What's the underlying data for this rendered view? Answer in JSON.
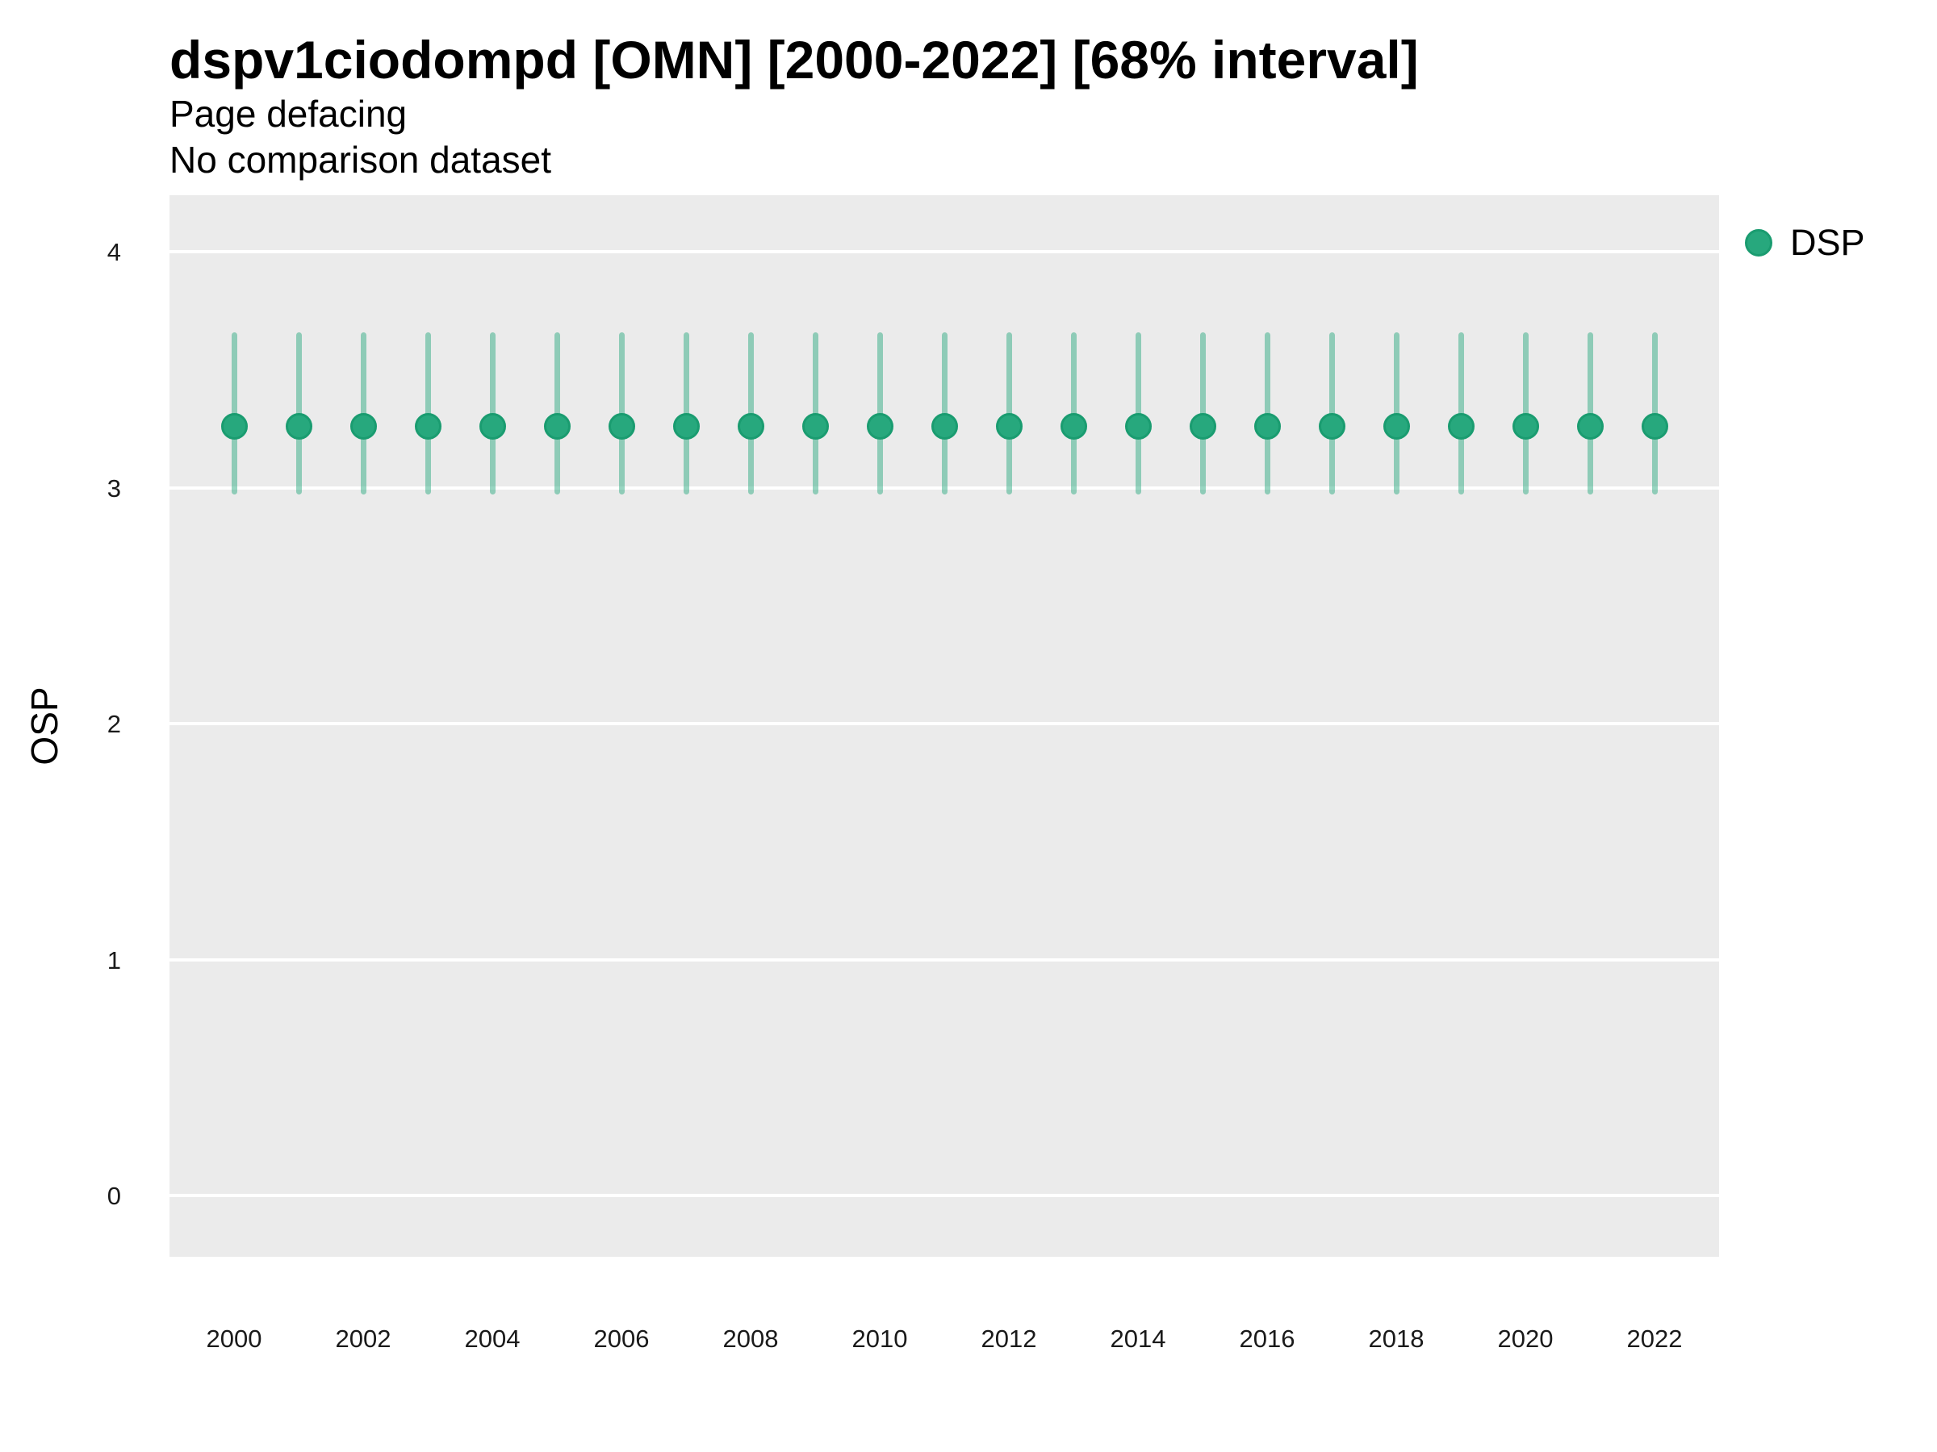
{
  "header": {
    "title": "dspv1ciodompd [OMN] [2000-2022] [68% interval]",
    "subtitle": "Page defacing",
    "note": "No comparison dataset"
  },
  "legend": {
    "items": [
      {
        "label": "DSP",
        "swatch": "circle"
      }
    ]
  },
  "axes": {
    "y": {
      "label": "OSP",
      "ticks": [
        0,
        1,
        2,
        3,
        4
      ]
    },
    "x": {
      "ticks": [
        2000,
        2002,
        2004,
        2006,
        2008,
        2010,
        2012,
        2014,
        2016,
        2018,
        2020,
        2022
      ]
    }
  },
  "colors": {
    "panel_bg": "#EBEBEB",
    "grid": "#FFFFFF",
    "point_fill": "#27A87D",
    "point_stroke": "#1A9C70",
    "interval": "rgba(39, 168, 125, 0.47)",
    "text": "#000000"
  },
  "chart_data": {
    "type": "scatter",
    "variant": "pointrange",
    "title": "dspv1ciodompd [OMN] [2000-2022] [68% interval]",
    "subtitle": "Page defacing",
    "annotation": "No comparison dataset",
    "xlabel": "",
    "ylabel": "OSP",
    "interval_level": "68%",
    "legend_position": "right-top",
    "grid": "major-y-only",
    "x": [
      2000,
      2001,
      2002,
      2003,
      2004,
      2005,
      2006,
      2007,
      2008,
      2009,
      2010,
      2011,
      2012,
      2013,
      2014,
      2015,
      2016,
      2017,
      2018,
      2019,
      2020,
      2021,
      2022
    ],
    "series": [
      {
        "name": "DSP",
        "values": [
          3.26,
          3.26,
          3.26,
          3.26,
          3.26,
          3.26,
          3.26,
          3.26,
          3.26,
          3.26,
          3.26,
          3.26,
          3.26,
          3.26,
          3.26,
          3.26,
          3.26,
          3.26,
          3.26,
          3.26,
          3.26,
          3.26,
          3.26
        ],
        "lower": [
          2.97,
          2.97,
          2.97,
          2.97,
          2.97,
          2.97,
          2.97,
          2.97,
          2.97,
          2.97,
          2.97,
          2.97,
          2.97,
          2.97,
          2.97,
          2.97,
          2.97,
          2.97,
          2.97,
          2.97,
          2.97,
          2.97,
          2.97
        ],
        "upper": [
          3.66,
          3.66,
          3.66,
          3.66,
          3.66,
          3.66,
          3.66,
          3.66,
          3.66,
          3.66,
          3.66,
          3.66,
          3.66,
          3.66,
          3.66,
          3.66,
          3.66,
          3.66,
          3.66,
          3.66,
          3.66,
          3.66,
          3.66
        ]
      }
    ],
    "xlim": [
      1999,
      2023
    ],
    "ylim": [
      -0.26,
      4.24
    ],
    "yticks": [
      0,
      1,
      2,
      3,
      4
    ],
    "xticks": [
      2000,
      2002,
      2004,
      2006,
      2008,
      2010,
      2012,
      2014,
      2016,
      2018,
      2020,
      2022
    ]
  }
}
